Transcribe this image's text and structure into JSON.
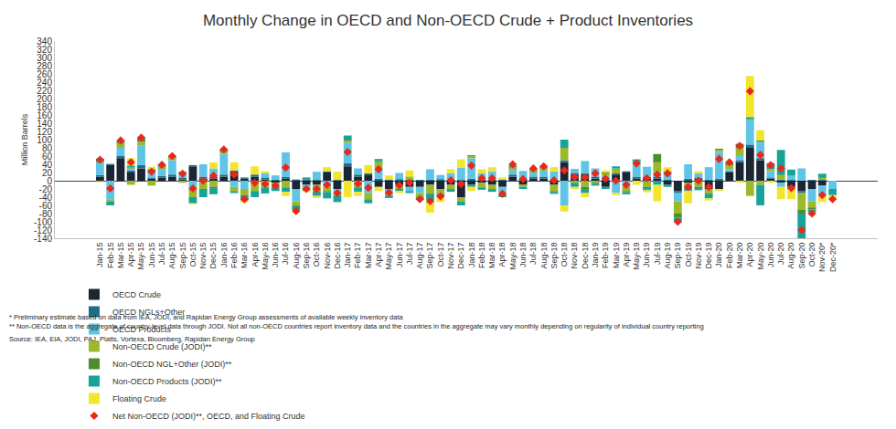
{
  "chart_data": {
    "type": "bar",
    "title": "Monthly Change in OECD and Non-OECD Crude + Product Inventories",
    "y_label": "Million Barrels",
    "stacked": true,
    "grid": false,
    "legend": "bottom",
    "ylim": [
      -140,
      340
    ],
    "yticks": [
      -140,
      -120,
      -100,
      -80,
      -60,
      -40,
      -20,
      0,
      20,
      40,
      60,
      80,
      100,
      120,
      140,
      160,
      180,
      200,
      220,
      240,
      260,
      280,
      300,
      320,
      340
    ],
    "annotations": [
      "* Preliminary estimate based on data from IEA, JODI, and Rapidan Energy Group assessments of available weekly inventory data",
      "** Non-OECD data is the aggregate of country-level data through JODI. Not all non-OECD countries report inventory data and the countries in the aggregate may vary monthly depending on regularity of individual country reporting",
      "Source: IEA, EIA, JODI, PAJ, Platts, Vortexa, Bloomberg, Rapidan Energy Group"
    ],
    "categories": [
      "Jan-15",
      "Feb-15",
      "Mar-15",
      "Apr-15",
      "May-15",
      "Jun-15",
      "Jul-15",
      "Aug-15",
      "Sep-15",
      "Oct-15",
      "Nov-15",
      "Dec-15",
      "Jan-16",
      "Feb-16",
      "Mar-16",
      "Apr-16",
      "May-16",
      "Jun-16",
      "Jul-16",
      "Aug-16",
      "Sep-16",
      "Oct-16",
      "Nov-16",
      "Dec-16",
      "Jan-17",
      "Feb-17",
      "Mar-17",
      "Apr-17",
      "May-17",
      "Jun-17",
      "Jul-17",
      "Aug-17",
      "Sep-17",
      "Oct-17",
      "Nov-17",
      "Dec-17",
      "Jan-18",
      "Feb-18",
      "Mar-18",
      "Apr-18",
      "May-18",
      "Jun-18",
      "Jul-18",
      "Aug-18",
      "Sep-18",
      "Oct-18",
      "Nov-18",
      "Dec-18",
      "Jan-19",
      "Feb-19",
      "Mar-19",
      "Apr-19",
      "May-19",
      "Jun-19",
      "Jul-19",
      "Aug-19",
      "Sep-19",
      "Oct-19",
      "Nov-19",
      "Dec-19",
      "Jan-20",
      "Feb-20",
      "Mar-20",
      "Apr-20",
      "May-20",
      "Jun-20",
      "Jul-20",
      "Aug-20",
      "Sep-20",
      "Oct-20",
      "Nov-20*",
      "Dec-20*"
    ],
    "series": [
      {
        "name": "OECD Crude",
        "type": "bar",
        "color": "#1b2533",
        "values": [
          10,
          38,
          55,
          20,
          30,
          5,
          8,
          10,
          3,
          35,
          5,
          5,
          10,
          20,
          5,
          10,
          3,
          -5,
          5,
          -20,
          -10,
          -10,
          20,
          -20,
          35,
          10,
          15,
          -15,
          -20,
          -10,
          -15,
          -15,
          -10,
          -20,
          -10,
          -40,
          -10,
          -5,
          -10,
          -15,
          10,
          -10,
          5,
          5,
          -10,
          45,
          15,
          15,
          5,
          -15,
          15,
          20,
          5,
          5,
          5,
          -10,
          -25,
          -5,
          5,
          -20,
          -20,
          20,
          45,
          80,
          50,
          5,
          -5,
          -15,
          -25,
          -20,
          -12,
          0
        ]
      },
      {
        "name": "OECD NGLs+Other",
        "type": "bar",
        "color": "#1d6e8a",
        "values": [
          4,
          3,
          5,
          5,
          8,
          3,
          4,
          5,
          4,
          3,
          5,
          5,
          5,
          5,
          3,
          5,
          5,
          3,
          4,
          3,
          3,
          2,
          3,
          2,
          8,
          5,
          3,
          5,
          3,
          4,
          3,
          2,
          3,
          4,
          3,
          2,
          5,
          3,
          3,
          3,
          5,
          4,
          5,
          5,
          3,
          5,
          4,
          3,
          5,
          3,
          3,
          3,
          5,
          4,
          5,
          3,
          -5,
          5,
          3,
          3,
          5,
          3,
          5,
          8,
          5,
          3,
          3,
          2,
          -5,
          2,
          2,
          0
        ]
      },
      {
        "name": "OECD Products",
        "type": "bar",
        "color": "#5fc5e6",
        "values": [
          30,
          -45,
          20,
          5,
          47,
          15,
          15,
          35,
          10,
          -20,
          30,
          20,
          51,
          -15,
          -20,
          0,
          10,
          10,
          60,
          -30,
          -10,
          20,
          -15,
          -10,
          50,
          15,
          -30,
          25,
          -10,
          15,
          -10,
          -15,
          25,
          10,
          15,
          30,
          50,
          15,
          20,
          -15,
          10,
          20,
          10,
          15,
          20,
          -60,
          10,
          30,
          20,
          10,
          -30,
          -15,
          30,
          25,
          10,
          13,
          -20,
          35,
          10,
          30,
          65,
          5,
          10,
          60,
          40,
          15,
          -10,
          10,
          30,
          -30,
          -25,
          -20
        ]
      },
      {
        "name": "Non-OECD Crude (JODI)**",
        "type": "bar",
        "color": "#9cb82b",
        "values": [
          -3,
          -5,
          10,
          -10,
          10,
          -12,
          5,
          5,
          -5,
          -20,
          -20,
          -15,
          5,
          -10,
          -15,
          -25,
          -15,
          -10,
          -15,
          -10,
          -5,
          -15,
          -10,
          -5,
          5,
          -15,
          -15,
          15,
          -5,
          -10,
          5,
          -10,
          -20,
          -12,
          -10,
          -10,
          5,
          -10,
          -10,
          -5,
          5,
          -5,
          5,
          5,
          -15,
          30,
          -5,
          -15,
          -5,
          5,
          10,
          -10,
          5,
          -15,
          25,
          5,
          -30,
          -10,
          -15,
          -10,
          5,
          10,
          20,
          -37,
          -10,
          5,
          10,
          -5,
          -40,
          -15,
          5,
          0
        ]
      },
      {
        "name": "Non-OECD NGL+Other (JODI)**",
        "type": "bar",
        "color": "#4e8c2f",
        "values": [
          2,
          0,
          3,
          2,
          5,
          0,
          2,
          2,
          2,
          0,
          0,
          -3,
          3,
          0,
          -3,
          0,
          -2,
          0,
          -2,
          -2,
          0,
          -2,
          -3,
          -2,
          2,
          -2,
          0,
          3,
          -2,
          0,
          2,
          -2,
          -3,
          0,
          -2,
          0,
          2,
          -2,
          -2,
          0,
          2,
          0,
          2,
          3,
          -2,
          0,
          0,
          -5,
          -2,
          2,
          2,
          -3,
          2,
          -3,
          20,
          2,
          -10,
          -5,
          -3,
          -3,
          3,
          2,
          5,
          2,
          3,
          0,
          2,
          0,
          -10,
          -5,
          0,
          0
        ]
      },
      {
        "name": "Non-OECD Products (JODI)**",
        "type": "bar",
        "color": "#17a398",
        "values": [
          8,
          -10,
          5,
          5,
          5,
          5,
          5,
          3,
          3,
          -15,
          -20,
          -15,
          2,
          -5,
          -10,
          -15,
          -14,
          -10,
          -10,
          -10,
          5,
          -10,
          -15,
          -15,
          10,
          -10,
          -10,
          5,
          -5,
          -5,
          -5,
          -5,
          -15,
          -5,
          -5,
          -10,
          -5,
          -5,
          -5,
          -5,
          5,
          -5,
          3,
          2,
          -5,
          20,
          -10,
          -10,
          -5,
          -5,
          5,
          -5,
          5,
          -5,
          -10,
          -5,
          -10,
          -5,
          -5,
          -10,
          0,
          5,
          5,
          5,
          -50,
          15,
          60,
          15,
          -70,
          -7,
          10,
          -15
        ]
      },
      {
        "name": "Floating Crude",
        "type": "bar",
        "color": "#f2e52e",
        "values": [
          0,
          0,
          0,
          18,
          0,
          6,
          0,
          0,
          0,
          -2,
          0,
          15,
          0,
          20,
          -5,
          20,
          5,
          0,
          -10,
          -5,
          -3,
          -5,
          10,
          20,
          -40,
          -10,
          20,
          -10,
          10,
          -5,
          15,
          0,
          -30,
          -15,
          10,
          20,
          -10,
          10,
          10,
          5,
          3,
          0,
          0,
          0,
          10,
          -15,
          -5,
          -10,
          0,
          5,
          -5,
          0,
          -10,
          -5,
          -40,
          10,
          0,
          -30,
          5,
          -5,
          -5,
          0,
          -5,
          100,
          25,
          -5,
          -30,
          -25,
          0,
          -5,
          -15,
          -10
        ]
      },
      {
        "name": "Net Non-OECD (JODI)**, OECD, and Floating Crude",
        "type": "scatter",
        "marker": "diamond",
        "color": "#e8281c",
        "values": [
          51,
          -19,
          98,
          45,
          105,
          22,
          39,
          60,
          17,
          -19,
          0,
          12,
          76,
          15,
          -45,
          -5,
          -8,
          -12,
          32,
          -74,
          -20,
          -20,
          -10,
          -30,
          70,
          -7,
          -17,
          28,
          -29,
          -11,
          -5,
          -45,
          -50,
          -38,
          1,
          -8,
          37,
          6,
          6,
          -32,
          40,
          4,
          30,
          35,
          1,
          25,
          9,
          8,
          18,
          5,
          0,
          -10,
          42,
          6,
          15,
          18,
          -100,
          -15,
          0,
          -15,
          53,
          45,
          85,
          218,
          63,
          38,
          30,
          -18,
          -120,
          -80,
          -35,
          -45
        ]
      }
    ]
  }
}
